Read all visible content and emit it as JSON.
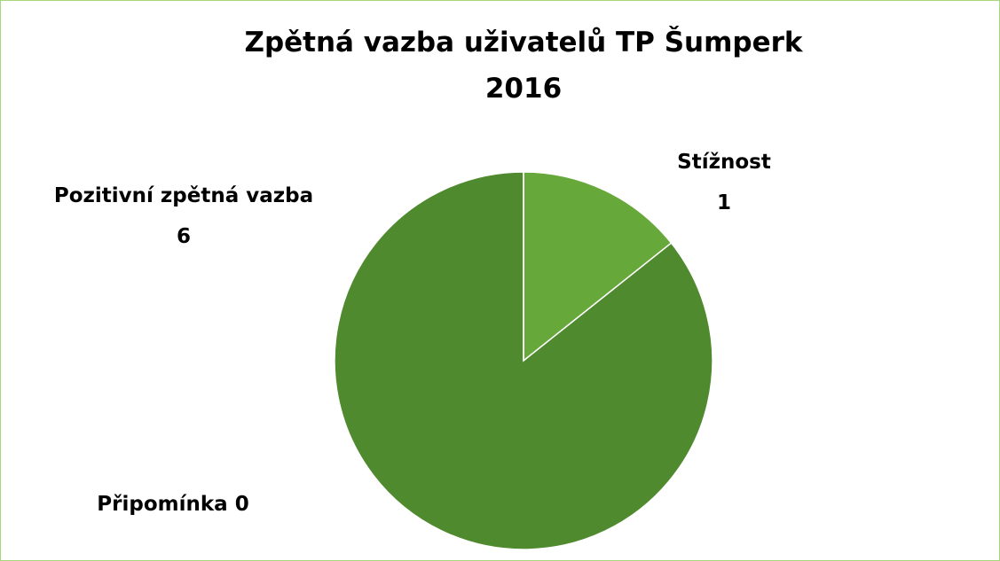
{
  "chart_data": {
    "type": "pie",
    "title": "Zpětná vazba uživatelů TP Šumperk 2016",
    "categories": [
      "Stížnost",
      "Pozitivní zpětná vazba",
      "Připomínka"
    ],
    "values": [
      1,
      6,
      0
    ],
    "colors": [
      "#67a83b",
      "#508a2e",
      "#3c6b22"
    ]
  }
}
